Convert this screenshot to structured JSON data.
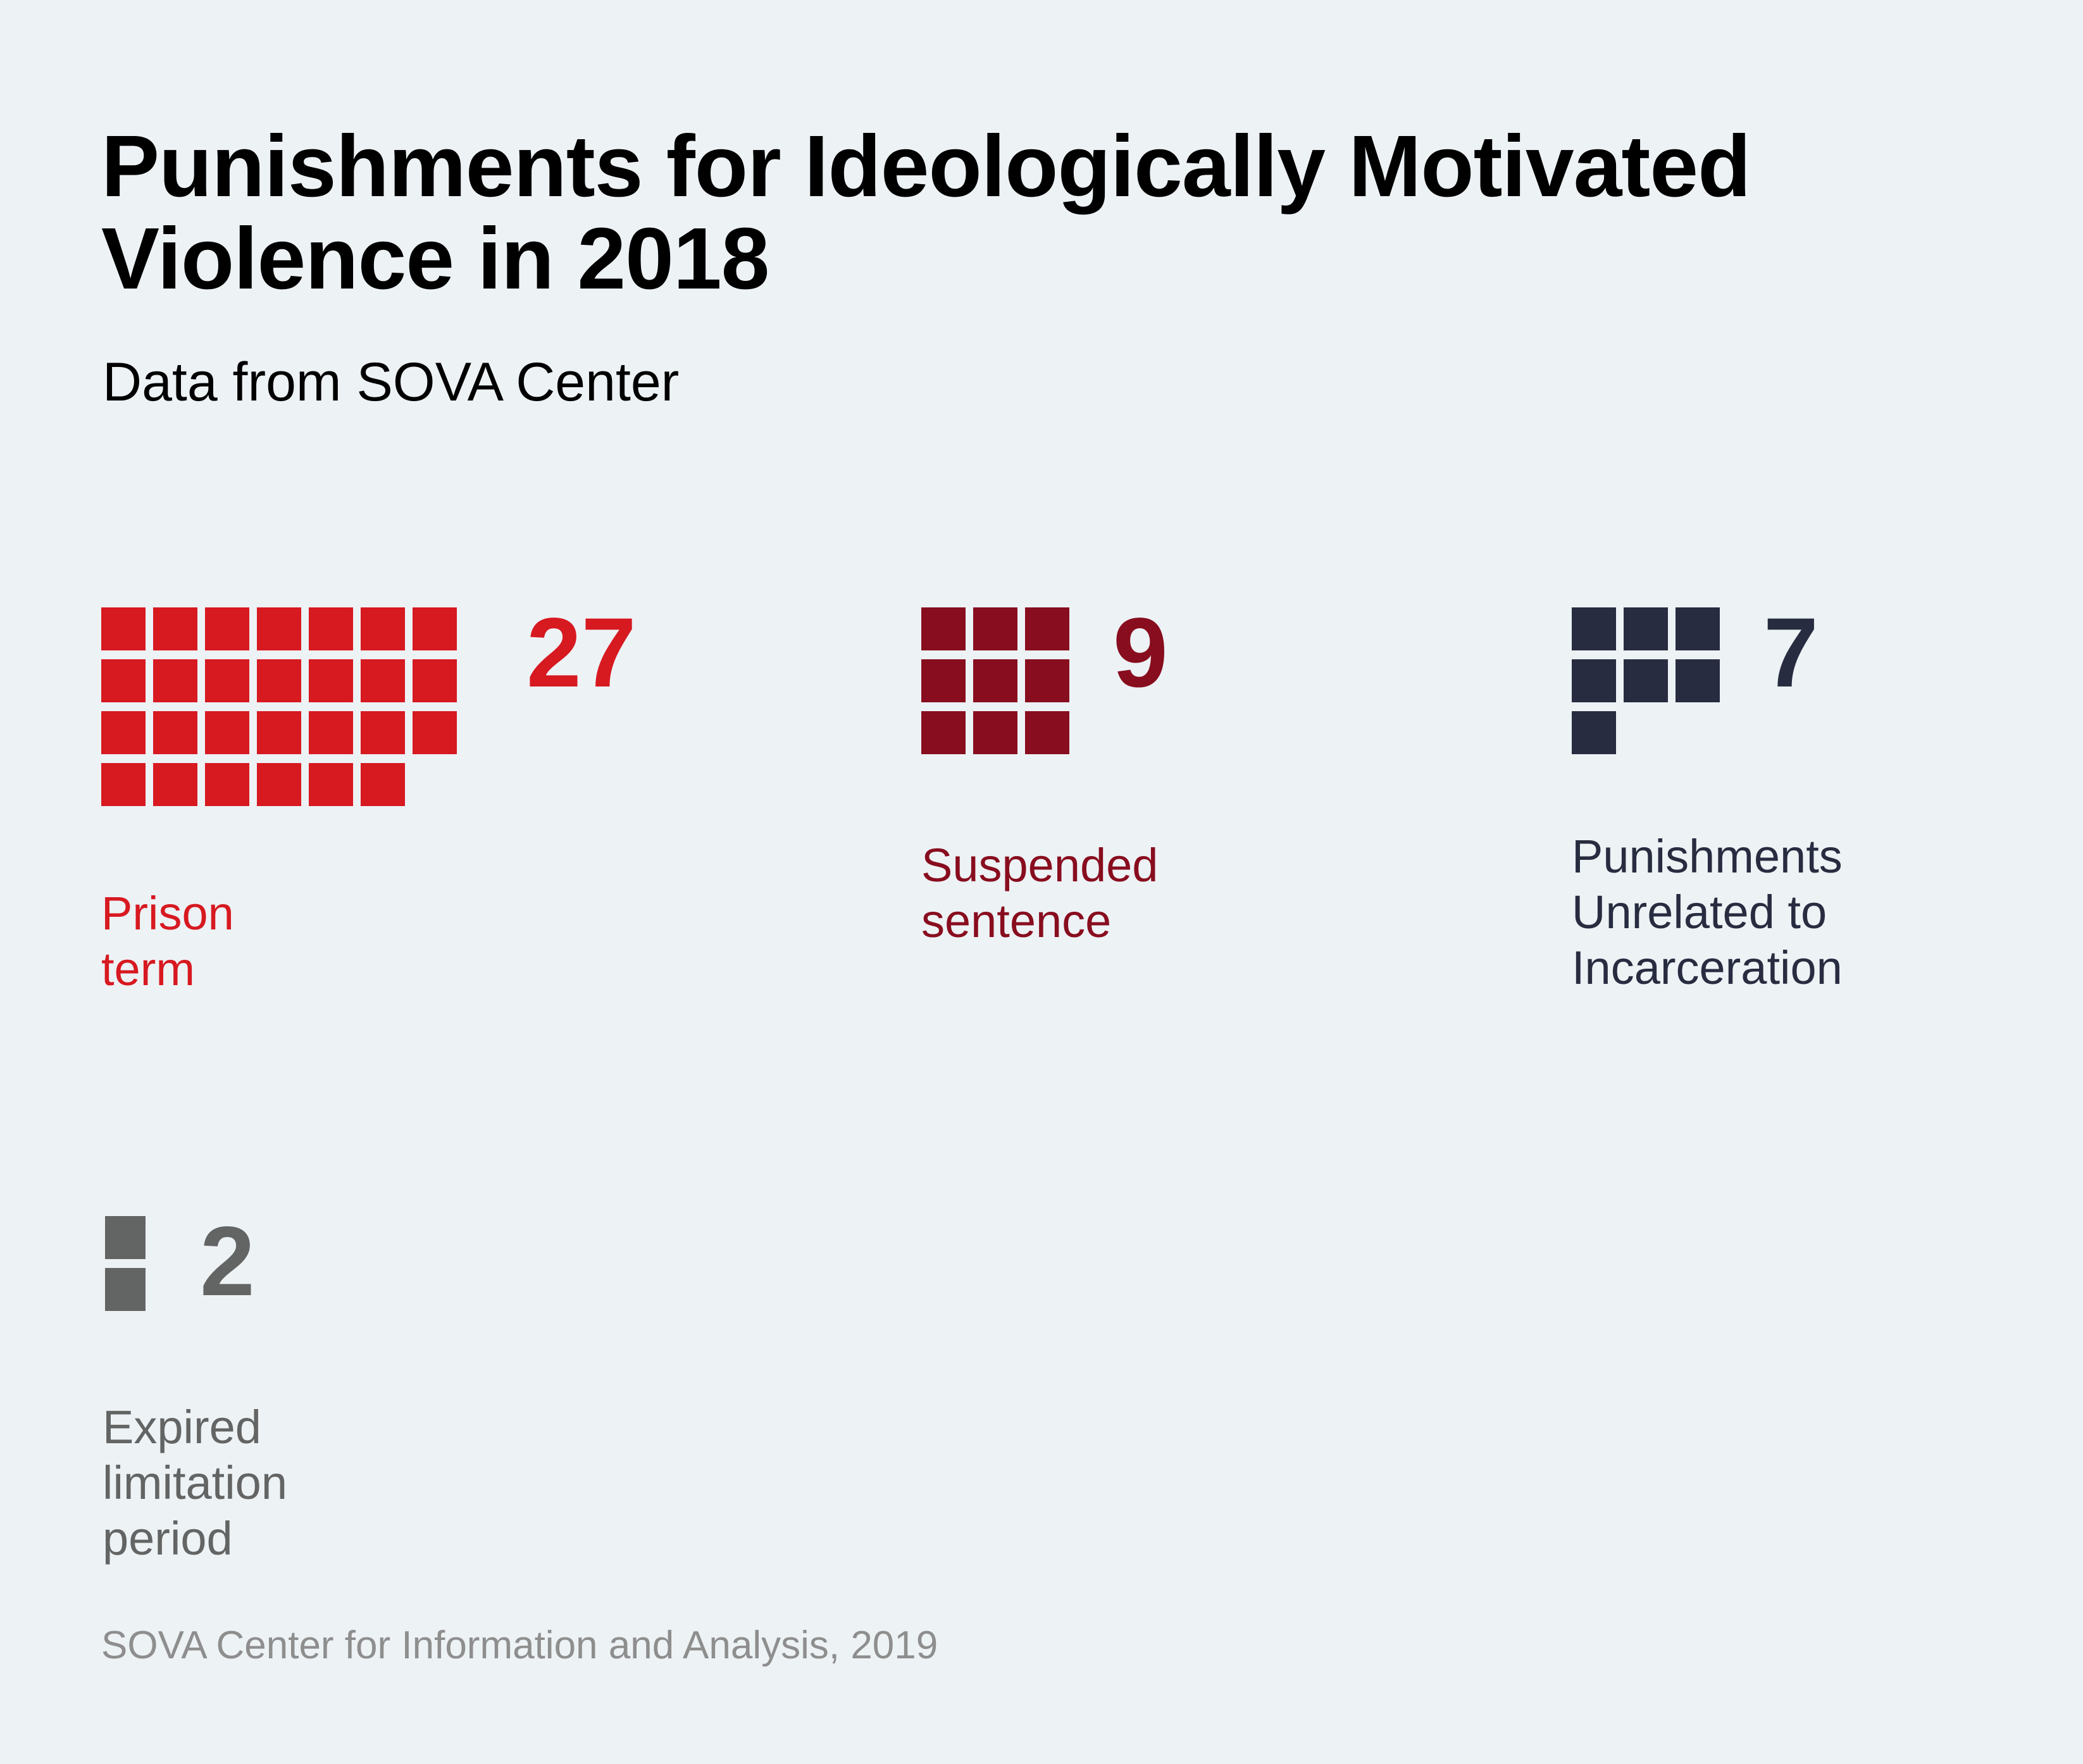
{
  "title": "Punishments for Ideologically Motivated Violence in 2018",
  "subtitle": "Data from SOVA Center",
  "footer": "SOVA Center for Information and Analysis, 2019",
  "chart_data": {
    "type": "waffle",
    "title": "Punishments for Ideologically Motivated Violence in 2018",
    "subtitle": "Data from SOVA Center",
    "unit": "1 square = 1 person",
    "categories": [
      "Prison term",
      "Suspended sentence",
      "Punishments Unrelated to Incarceration",
      "Expired limitation period"
    ],
    "values": [
      27,
      9,
      7,
      2
    ],
    "series": [
      {
        "name": "Prison term",
        "value": 27,
        "label_lines": [
          "Prison term"
        ],
        "color": "#d71920",
        "columns": 7
      },
      {
        "name": "Suspended sentence",
        "value": 9,
        "label_lines": [
          "Suspended",
          "sentence"
        ],
        "color": "#880d1e",
        "columns": 3
      },
      {
        "name": "Punishments Unrelated to Incarceration",
        "value": 7,
        "label_lines": [
          "Punishments",
          "Unrelated to",
          "Incarceration"
        ],
        "color": "#282c40",
        "columns": 3
      },
      {
        "name": "Expired limitation period",
        "value": 2,
        "label_lines": [
          "Expired limitation",
          "period"
        ],
        "color": "#636564",
        "columns": 1
      }
    ],
    "source": "SOVA Center for Information and Analysis, 2019"
  }
}
